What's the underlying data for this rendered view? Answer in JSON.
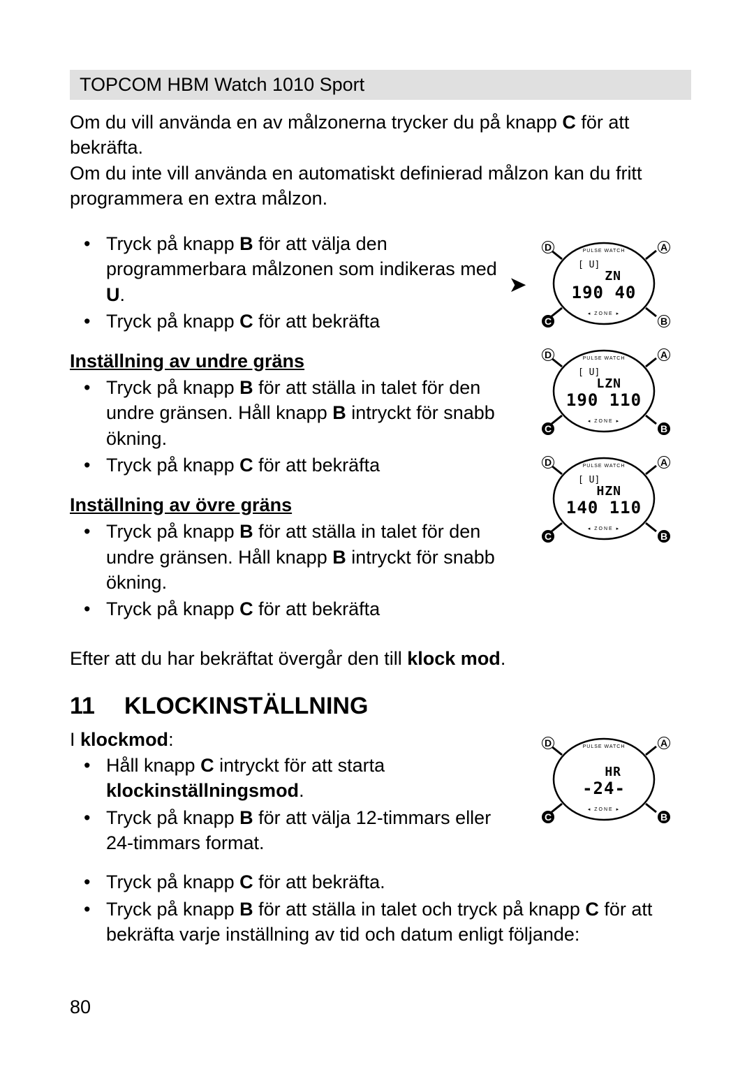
{
  "header": "TOPCOM HBM Watch 1010 Sport",
  "intro1_a": "Om du vill använda en av målzonerna trycker du på knapp ",
  "intro1_b": " för att bekräfta.",
  "intro2": "Om du inte vill använda en automatiskt definierad målzon kan du fritt programmera en extra målzon.",
  "b1_a": "Tryck på knapp ",
  "b1_b": " för att välja den programmerbara målzonen som indikeras med ",
  "b1_c": ".",
  "b2_a": "Tryck på knapp ",
  "b2_b": " för att bekräfta",
  "sec_low": "Inställning av undre gräns",
  "low1_a": "Tryck på knapp ",
  "low1_b": " för att ställa in talet för den undre gränsen. Håll knapp ",
  "low1_c": " intryckt för snabb ökning.",
  "low2_a": "Tryck på knapp ",
  "low2_b": " för att bekräfta",
  "sec_high": "Inställning av övre gräns",
  "high1_a": "Tryck på knapp ",
  "high1_b": " för att ställa in talet för den undre gränsen. Håll knapp ",
  "high1_c": " intryckt för snabb ökning.",
  "high2_a": "Tryck på knapp ",
  "high2_b": " för att bekräfta",
  "after_a": "Efter att du har bekräftat övergår den till ",
  "after_b": ".",
  "ch_num": "11",
  "ch_title": "KLOCKINSTÄLLNING",
  "clk_intro_a": "I ",
  "clk_intro_b": ":",
  "clk1_a": "Håll knapp ",
  "clk1_b": " intryckt för att starta ",
  "clk1_c": ".",
  "clk2_a": "Tryck på knapp ",
  "clk2_b": " för att välja 12-timmars eller 24-timmars format.",
  "clk3_a": "Tryck på knapp ",
  "clk3_b": " för att bekräfta.",
  "clk4_a": "Tryck på knapp ",
  "clk4_b": " för att ställa in talet och tryck på knapp ",
  "clk4_c": " för att bekräfta varje inställning av tid och datum enligt följande:",
  "bold": {
    "C": "C",
    "B": "B",
    "U": "U",
    "klockmod": "klock mod",
    "klockmod2": "klockmod",
    "klockinst": "klockinställningsmod"
  },
  "watches": [
    {
      "ind": "U",
      "l1": "ZN",
      "l2": "190  40",
      "arrow": true,
      "btnB": "open"
    },
    {
      "ind": "U",
      "l1": "LZN",
      "l2": "190 110",
      "arrow": false,
      "btnB": "filled"
    },
    {
      "ind": "U",
      "l1": "HZN",
      "l2": "140 110",
      "arrow": false,
      "btnB": "filled"
    }
  ],
  "watch_clock": {
    "l1": "HR",
    "l2": "-24-"
  },
  "labels": {
    "A": "A",
    "B": "B",
    "C": "C",
    "D": "D"
  },
  "pagenum": "80",
  "colors": {
    "text": "#000000",
    "header_bg": "#e0e0e0",
    "page_bg": "#ffffff"
  }
}
